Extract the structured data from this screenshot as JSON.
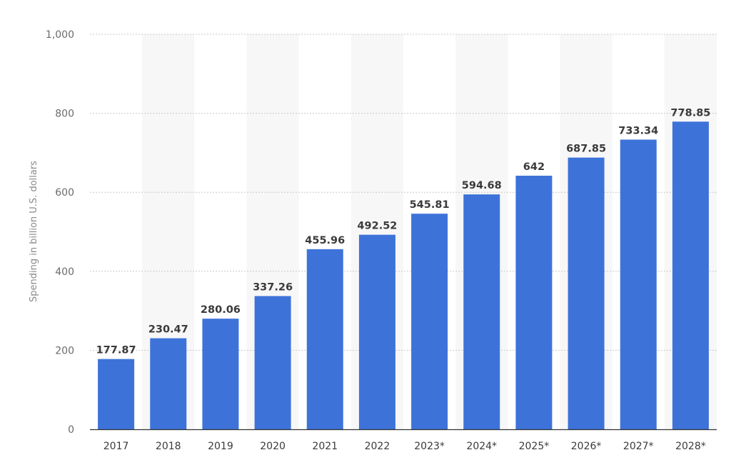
{
  "chart_data": {
    "type": "bar",
    "categories": [
      "2017",
      "2018",
      "2019",
      "2020",
      "2021",
      "2022",
      "2023*",
      "2024*",
      "2025*",
      "2026*",
      "2027*",
      "2028*"
    ],
    "values": [
      177.87,
      230.47,
      280.06,
      337.26,
      455.96,
      492.52,
      545.81,
      594.68,
      642,
      687.85,
      733.34,
      778.85
    ],
    "value_labels": [
      "177.87",
      "230.47",
      "280.06",
      "337.26",
      "455.96",
      "492.52",
      "545.81",
      "594.68",
      "642",
      "687.85",
      "733.34",
      "778.85"
    ],
    "ylabel": "Spending in billion U.S. dollars",
    "xlabel": "",
    "ylim": [
      0,
      1000
    ],
    "yticks": [
      0,
      200,
      400,
      600,
      800,
      1000
    ],
    "ytick_labels": [
      "0",
      "200",
      "400",
      "600",
      "800",
      "1,000"
    ],
    "grid": true,
    "alternating_column_shading": true,
    "colors": {
      "bar": "#3d73d9",
      "grid": "#c9c9c9",
      "band": "#f7f7f7",
      "axis": "#333333"
    }
  }
}
